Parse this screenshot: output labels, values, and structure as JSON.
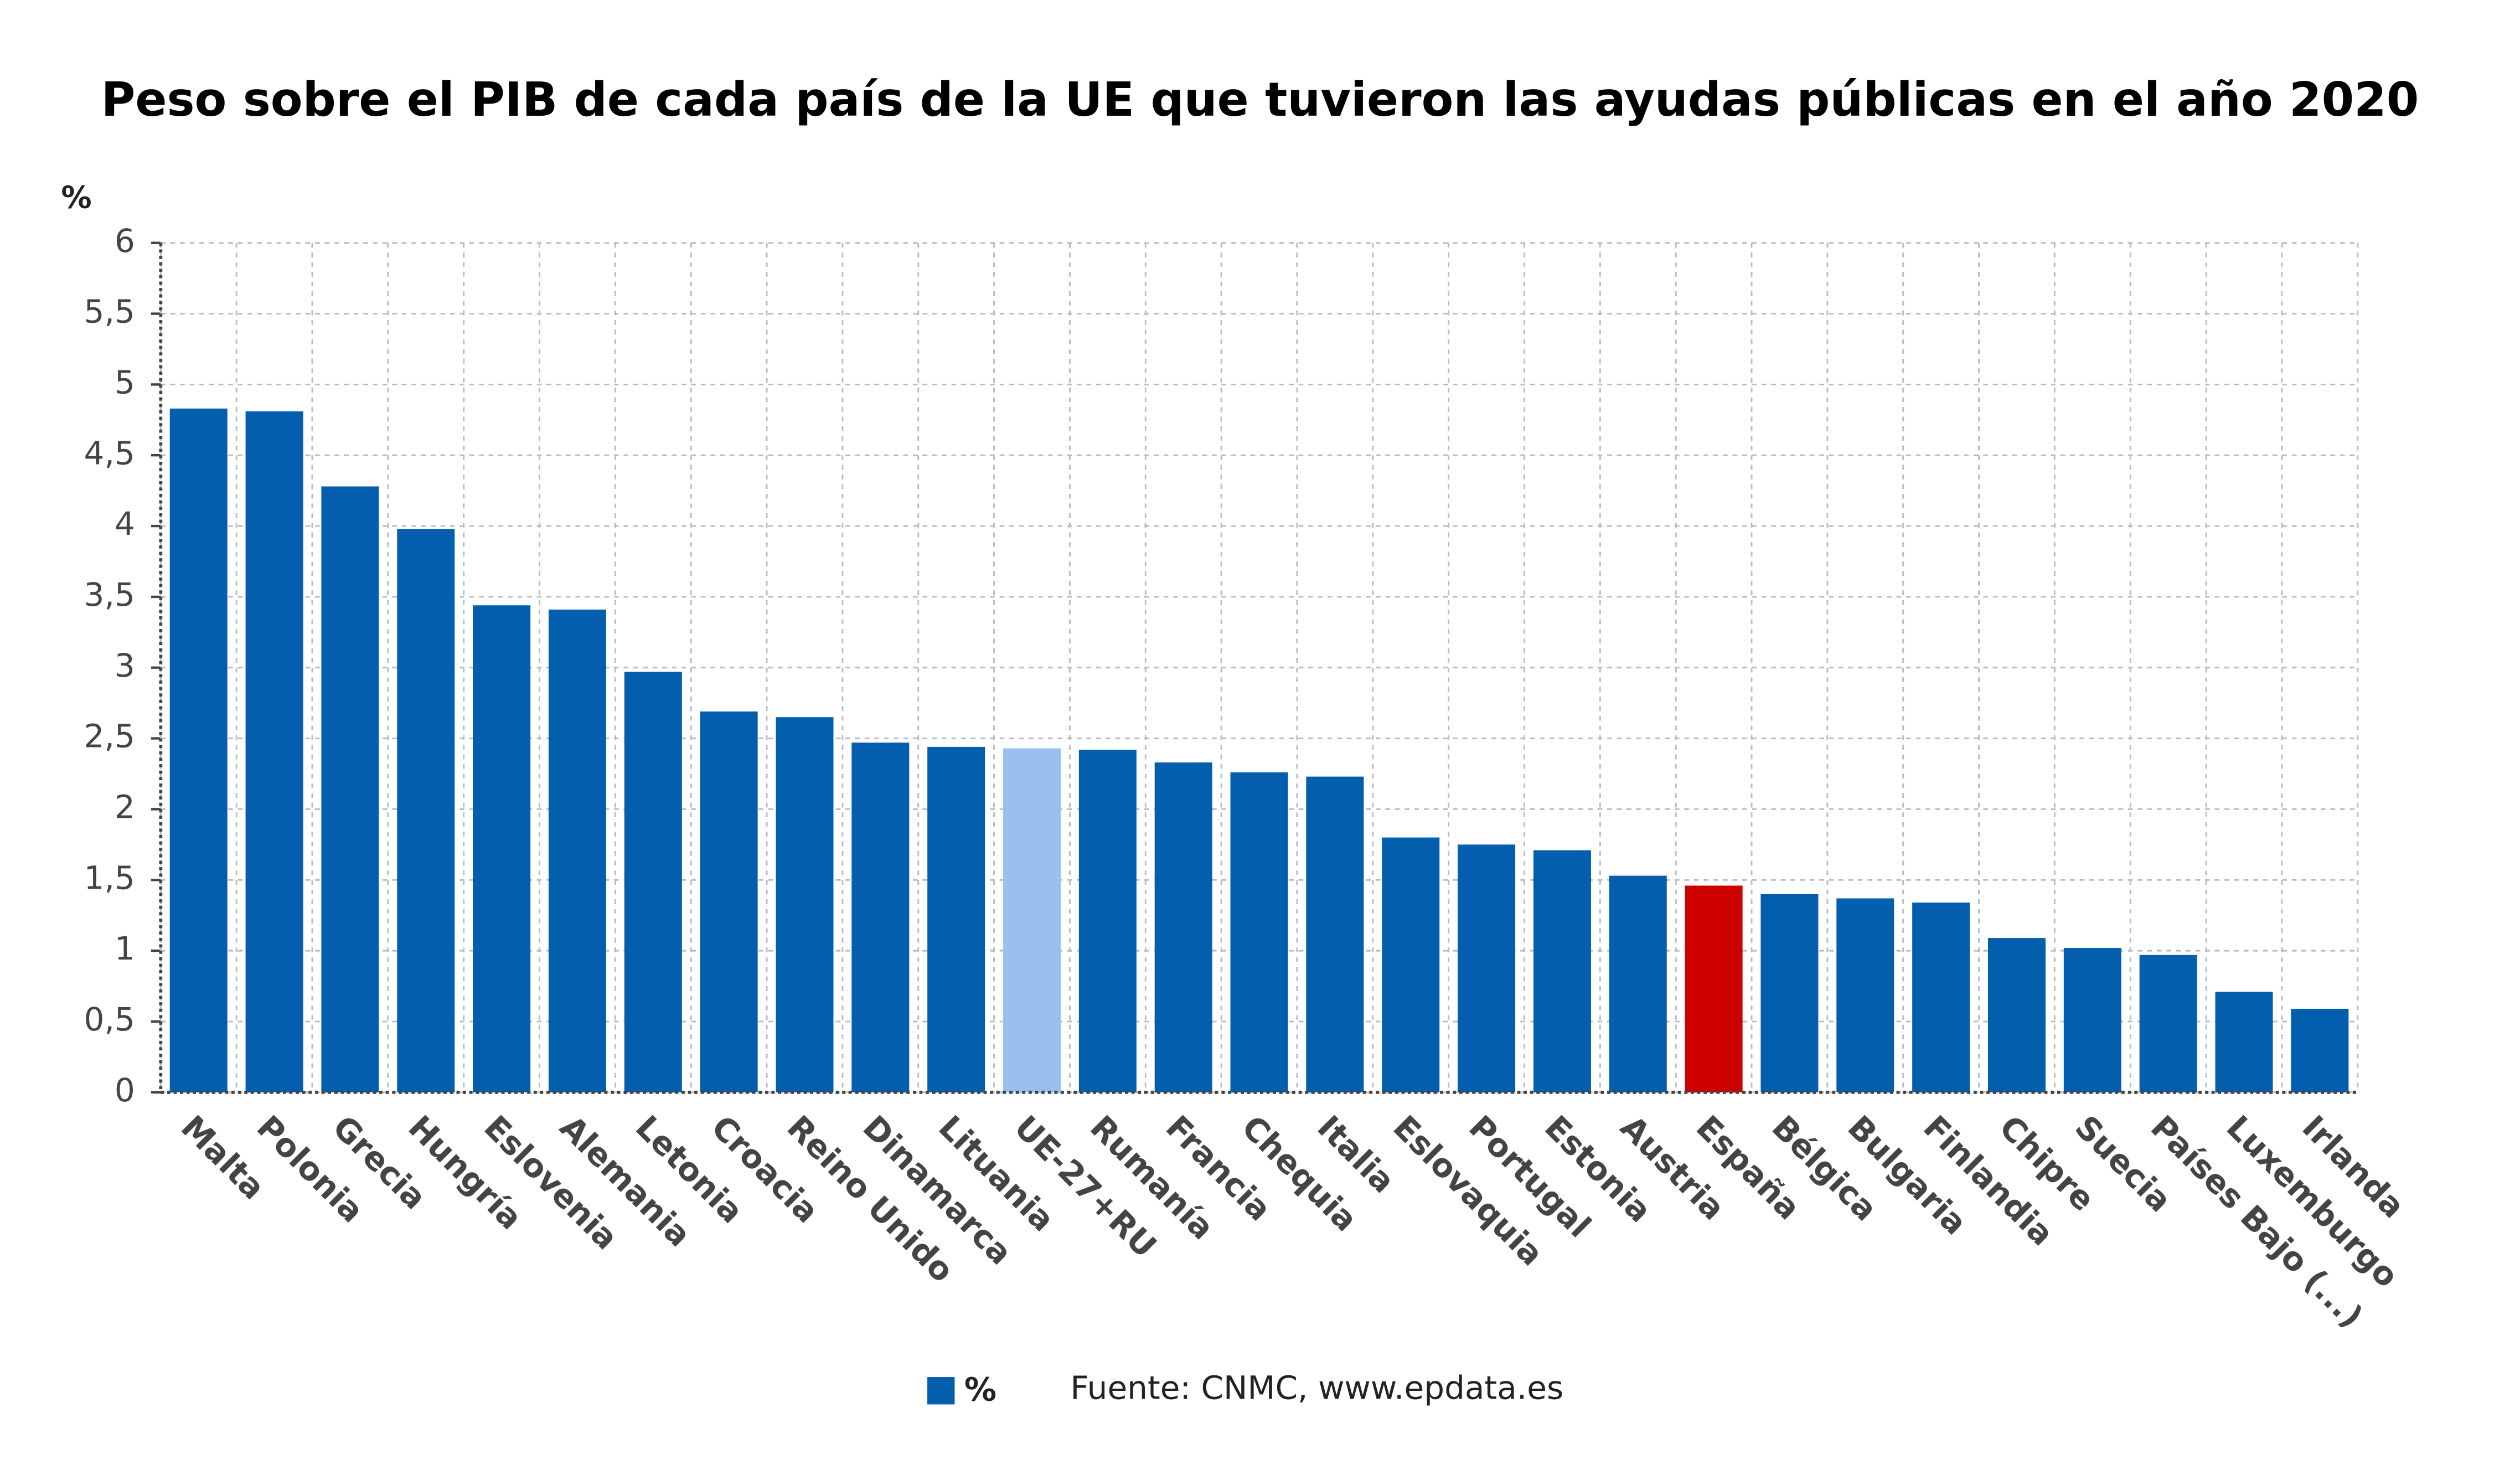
{
  "chart_data": {
    "type": "bar",
    "title": "Peso sobre el PIB de cada país de la UE que tuvieron las ayudas públicas en el año 2020",
    "y_label": "%",
    "source": "Fuente: CNMC, www.epdata.es",
    "categories": [
      "Malta",
      "Polonia",
      "Grecia",
      "Hungría",
      "Eslovenia",
      "Alemania",
      "Letonia",
      "Croacia",
      "Reino Unido",
      "Dinamarca",
      "Lituania",
      "UE-27+RU",
      "Rumanía",
      "Francia",
      "Chequia",
      "Italia",
      "Eslovaquia",
      "Portugal",
      "Estonia",
      "Austria",
      "España",
      "Bélgica",
      "Bulgaria",
      "Finlandia",
      "Chipre",
      "Suecia",
      "Países Bajo (...)",
      "Luxemburgo",
      "Irlanda"
    ],
    "series": [
      {
        "name": "%",
        "color": "#035fad",
        "colors": [
          "#035fad",
          "#035fad",
          "#035fad",
          "#035fad",
          "#035fad",
          "#035fad",
          "#035fad",
          "#035fad",
          "#035fad",
          "#035fad",
          "#035fad",
          "#9ac1ee",
          "#035fad",
          "#035fad",
          "#035fad",
          "#035fad",
          "#035fad",
          "#035fad",
          "#035fad",
          "#035fad",
          "#cc0000",
          "#035fad",
          "#035fad",
          "#035fad",
          "#035fad",
          "#035fad",
          "#035fad",
          "#035fad",
          "#035fad"
        ],
        "values": [
          4.83,
          4.81,
          4.28,
          3.98,
          3.44,
          3.41,
          2.97,
          2.69,
          2.65,
          2.47,
          2.44,
          2.43,
          2.42,
          2.33,
          2.26,
          2.23,
          1.8,
          1.75,
          1.71,
          1.53,
          1.46,
          1.4,
          1.37,
          1.34,
          1.09,
          1.02,
          0.97,
          0.71,
          0.59
        ]
      }
    ],
    "ylim": [
      0,
      6
    ],
    "yticks": [
      0,
      {
        "value": 0.5,
        "label": "0,5"
      },
      1,
      {
        "value": 1.5,
        "label": "1,5"
      },
      2,
      {
        "value": 2.5,
        "label": "2,5"
      },
      3,
      {
        "value": 3.5,
        "label": "3,5"
      },
      4,
      {
        "value": 4.5,
        "label": "4,5"
      },
      5,
      {
        "value": 5.5,
        "label": "5,5"
      },
      6
    ],
    "grid": true
  }
}
